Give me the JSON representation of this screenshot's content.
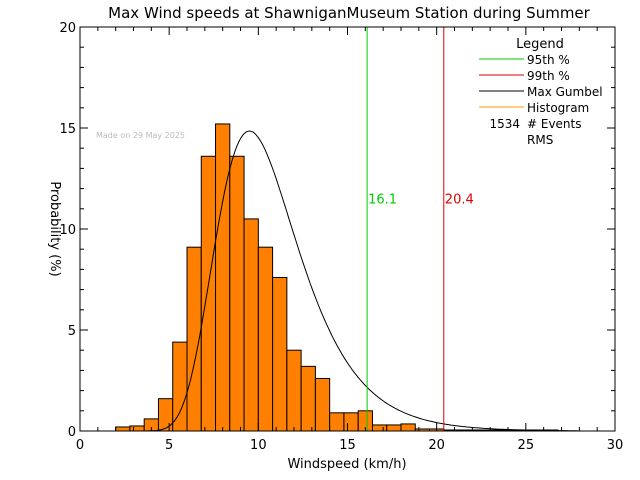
{
  "chart_data": {
    "type": "bar",
    "title": "Max Wind speeds at ShawniganMuseum Station during Summer",
    "xlabel": "Windspeed (km/h)",
    "ylabel": "Probability (%)",
    "xlim": [
      0,
      30
    ],
    "ylim": [
      0,
      20
    ],
    "x_ticks": [
      0,
      5,
      10,
      15,
      20,
      25,
      30
    ],
    "y_ticks": [
      0,
      5,
      10,
      15,
      20
    ],
    "watermark": "Made on 29 May 2025",
    "histogram": {
      "bin_width": 0.8,
      "bin_starts": [
        2.0,
        2.8,
        3.6,
        4.4,
        5.2,
        6.0,
        6.8,
        7.6,
        8.4,
        9.2,
        10.0,
        10.8,
        11.6,
        12.4,
        13.2,
        14.0,
        14.8,
        15.6,
        16.4,
        17.2,
        18.0,
        18.8,
        19.6,
        20.4,
        21.2,
        22.0,
        22.8,
        23.6,
        24.4,
        25.2,
        26.0
      ],
      "values": [
        0.2,
        0.25,
        0.6,
        1.6,
        4.4,
        9.1,
        13.6,
        15.2,
        13.6,
        10.5,
        9.1,
        7.6,
        4.0,
        3.2,
        2.6,
        0.9,
        0.9,
        1.0,
        0.3,
        0.3,
        0.35,
        0.1,
        0.1,
        0.05,
        0.05,
        0.05,
        0.05,
        0.05,
        0.05,
        0.05,
        0.05
      ],
      "color": "#ff7f00"
    },
    "gumbel_curve": {
      "mode": 9.5,
      "beta": 2.3,
      "peak": 14.85,
      "color": "#000000"
    },
    "percentile_lines": [
      {
        "label": "16.1",
        "x": 16.1,
        "label_y": 11.5,
        "color": "#00cc00"
      },
      {
        "label": "20.4",
        "x": 20.4,
        "label_y": 11.5,
        "color": "#dd0000"
      }
    ],
    "legend": {
      "title": "Legend",
      "placement": "top-right",
      "items": [
        {
          "label": "95th %",
          "color": "#00cc00",
          "swatch": true
        },
        {
          "label": "99th %",
          "color": "#dd0000",
          "swatch": true
        },
        {
          "label": "Max Gumbel",
          "color": "#000000",
          "swatch": true
        },
        {
          "label": "Histogram",
          "color": "#ff9900",
          "swatch": true
        },
        {
          "label": "# Events",
          "value": "1534",
          "swatch": false
        },
        {
          "label": "RMS",
          "value": "",
          "swatch": false
        }
      ]
    }
  }
}
